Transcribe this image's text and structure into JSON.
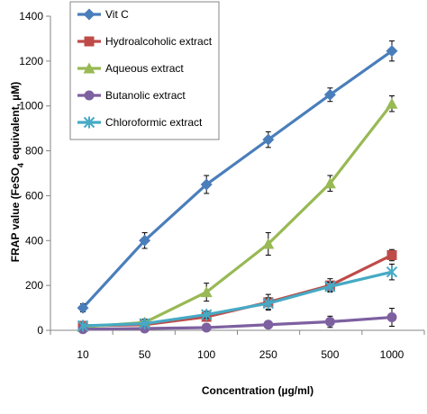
{
  "chart_data": {
    "type": "line",
    "categories": [
      "10",
      "50",
      "100",
      "250",
      "500",
      "1000"
    ],
    "xlabel": "Concentration (µg/ml)",
    "ylabel_main": "FRAP value (FeSO",
    "ylabel_sub": "4",
    "ylabel_end": " equivalent, µM)",
    "ylim": [
      0,
      1400
    ],
    "yticks": [
      0,
      200,
      400,
      600,
      800,
      1000,
      1200,
      1400
    ],
    "legend_position": "top-center",
    "grid": false,
    "series": [
      {
        "name": "Vit C",
        "color": "#4a7ebb",
        "marker": "diamond",
        "values": [
          100,
          400,
          650,
          850,
          1050,
          1245
        ],
        "errors": [
          18,
          35,
          40,
          35,
          30,
          45
        ]
      },
      {
        "name": "Hydroalcoholic extract",
        "color": "#be4b48",
        "marker": "square",
        "values": [
          20,
          25,
          60,
          125,
          200,
          335
        ],
        "errors": [
          15,
          15,
          20,
          35,
          30,
          25
        ]
      },
      {
        "name": "Aqueous extract",
        "color": "#98b954",
        "marker": "triangle",
        "values": [
          15,
          35,
          170,
          385,
          655,
          1010
        ],
        "errors": [
          10,
          15,
          40,
          50,
          35,
          35
        ]
      },
      {
        "name": "Butanolic extract",
        "color": "#7d60a0",
        "marker": "circle",
        "values": [
          5,
          8,
          12,
          25,
          38,
          58
        ],
        "errors": [
          10,
          10,
          10,
          15,
          25,
          40
        ]
      },
      {
        "name": "Chloroformic extract",
        "color": "#46aac5",
        "marker": "star",
        "values": [
          20,
          30,
          70,
          120,
          195,
          260
        ],
        "errors": [
          10,
          10,
          15,
          25,
          20,
          35
        ]
      }
    ]
  }
}
